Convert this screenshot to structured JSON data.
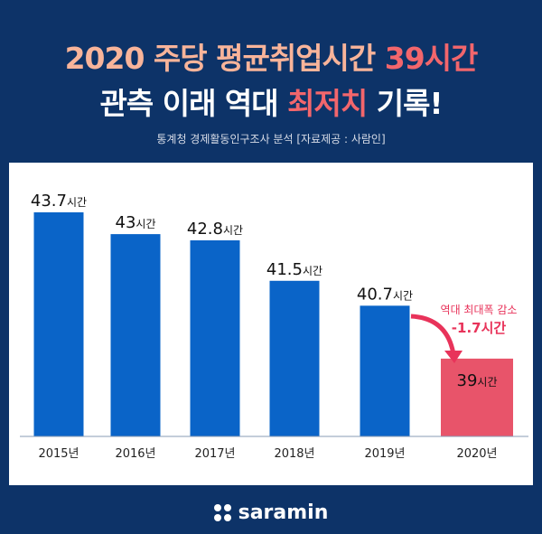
{
  "header": {
    "title_line1_a": "2020 주당 평균취업시간 ",
    "title_line1_b": "39시간",
    "title_line2_a": "관측 이래 역대 ",
    "title_line2_b": "최저치",
    "title_line2_c": " 기록!",
    "subtitle": "통계청 경제활동인구조사 분석 [자료제공 : 사람인]"
  },
  "chart_data": {
    "type": "bar",
    "categories": [
      "2015년",
      "2016년",
      "2017년",
      "2018년",
      "2019년",
      "2020년"
    ],
    "values": [
      43.7,
      43,
      42.8,
      41.5,
      40.7,
      39
    ],
    "value_labels": [
      "43.7",
      "43",
      "42.8",
      "41.5",
      "40.7",
      "39"
    ],
    "unit": "시간",
    "ylim": [
      36.5,
      44.5
    ],
    "colors": {
      "bar": "#0a64c8",
      "highlight": "#e8546a",
      "annotation": "#e8335a"
    },
    "annotation": {
      "line1": "역대 최대폭 감소",
      "line2": "-1.7시간"
    }
  },
  "footer": {
    "logo": "saramin"
  }
}
